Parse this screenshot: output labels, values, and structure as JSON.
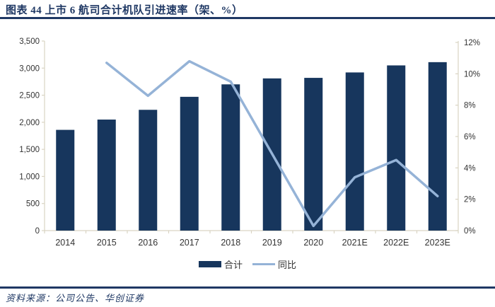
{
  "header": {
    "title": "图表 44  上市 6 航司合计机队引进速率（架、%）"
  },
  "footer": {
    "source_label": "资料来源：公司公告、华创证券"
  },
  "colors": {
    "bar_navy": "#17365D",
    "line_blue": "#95B3D7",
    "title_navy": "#1F3864",
    "axis_line": "#D9D4C3",
    "tick_text": "#333333"
  },
  "chart_data": {
    "type": "bar",
    "subtype": "bar+line combo, dual axis",
    "title": "上市 6 航司合计机队引进速率（架、%）",
    "categories": [
      "2014",
      "2015",
      "2016",
      "2017",
      "2018",
      "2019",
      "2020",
      "2021E",
      "2022E",
      "2023E"
    ],
    "series": [
      {
        "name": "合计",
        "type": "bar",
        "axis": "left",
        "values": [
          1860,
          2050,
          2230,
          2470,
          2700,
          2810,
          2820,
          2920,
          3050,
          3110
        ]
      },
      {
        "name": "同比",
        "type": "line",
        "axis": "right",
        "values": [
          null,
          10.7,
          8.6,
          10.8,
          9.5,
          4.9,
          0.3,
          3.4,
          4.5,
          2.2
        ]
      }
    ],
    "left_axis": {
      "min": 0,
      "max": 3500,
      "step": 500,
      "tick_labels": [
        "0",
        "500",
        "1,000",
        "1,500",
        "2,000",
        "2,500",
        "3,000",
        "3,500"
      ]
    },
    "right_axis": {
      "min": 0,
      "max": 12,
      "step": 2,
      "tick_labels": [
        "0%",
        "2%",
        "4%",
        "6%",
        "8%",
        "10%",
        "12%"
      ]
    },
    "grid": false,
    "legend_position": "bottom"
  }
}
